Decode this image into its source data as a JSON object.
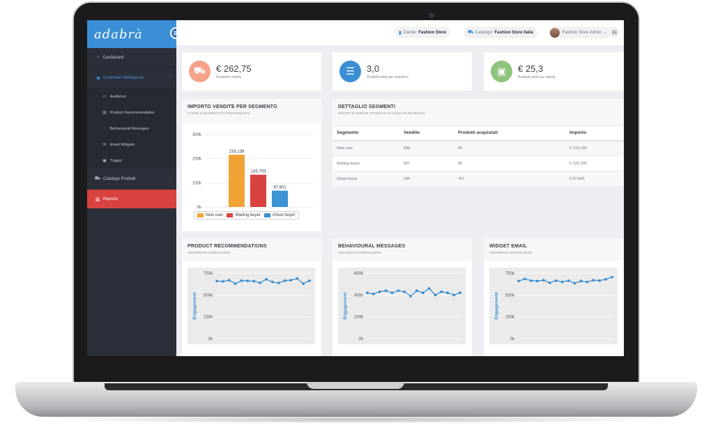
{
  "app": {
    "logo_text": "adabrà"
  },
  "colors": {
    "accent": "#3a8fd6",
    "orange": "#f2a335",
    "red": "#d8423f",
    "blue": "#3c93d6",
    "salmon": "#f6a28a",
    "green": "#8fc47d",
    "sidebar": "#2b2f39"
  },
  "sidebar": {
    "items": [
      {
        "label": "Dashboard",
        "icon": "dashboard-icon"
      },
      {
        "label": "Customer Intelligence",
        "icon": "megaphone-icon"
      },
      {
        "label": "Audience",
        "icon": "monitor-icon"
      },
      {
        "label": "Product Recommendation",
        "icon": "keyboard-icon"
      },
      {
        "label": "Behavioural Messages",
        "icon": "chat-icon"
      },
      {
        "label": "Email Widgets",
        "icon": "envelope-icon"
      },
      {
        "label": "Trigger",
        "icon": "inbox-icon"
      },
      {
        "label": "Catalogo Prodotti",
        "icon": "cart-icon"
      },
      {
        "label": "Reports",
        "icon": "bar-chart-icon"
      }
    ]
  },
  "topbar": {
    "cliente_label": "Cliente:",
    "cliente_value": "Fashion Store",
    "catalogo_label": "Catalogo:",
    "catalogo_value": "Fashion Store Italia",
    "user": "Fashion Store Admin"
  },
  "kpis": [
    {
      "value": "€ 262,75",
      "label": "Scontrino medio",
      "icon": "cart-icon",
      "color": "#f6a28a"
    },
    {
      "value": "3,0",
      "label": "Prodotti medi per scontrino",
      "icon": "list-icon",
      "color": "#3c8fd4"
    },
    {
      "value": "€ 25,3",
      "label": "Acquisti medi per utente",
      "icon": "money-icon",
      "color": "#8fc47d"
    }
  ],
  "importo": {
    "title": "IMPORTO VENDITE PER SEGMENTO",
    "subtitle": "(I PRIMI 5 SEGMENTI PIÙ PERFORMANTI)"
  },
  "dettaglio": {
    "title": "DETTAGLIO SEGMENTI",
    "subtitle": "IMPORTI E VENDITE OTTENUTE DA CIASCUN SEGMENTO",
    "headers": [
      "Segmento",
      "Vendite",
      "Prodotti acquistati",
      "Importo"
    ],
    "rows": [
      [
        "New user",
        "838",
        "2K",
        "€ 216,14K"
      ],
      [
        "Waiting buyer",
        "507",
        "2K",
        "€ 133,70K"
      ],
      [
        "Ghost buyer",
        "244",
        "757",
        "€ 67,60K"
      ]
    ]
  },
  "line_cards": [
    {
      "title": "PRODUCT RECOMMENDATIONS",
      "subtitle": "ANDAMENTO GIORNALIERO"
    },
    {
      "title": "BEHAVIOURAL MESSAGES",
      "subtitle": "ANDAMENTO GIORNALIERO"
    },
    {
      "title": "WIDGET EMAIL",
      "subtitle": "ANDAMENTO GIORNALIERO"
    }
  ],
  "chart_data": [
    {
      "type": "bar",
      "categories": [
        "New user",
        "Waiting buyer",
        "Ghost buyer"
      ],
      "values": [
        216138,
        133703,
        67601
      ],
      "data_labels": [
        "216,138",
        "133,703",
        "67,601"
      ],
      "colors": [
        "#f2a335",
        "#d8423f",
        "#3c93d6"
      ],
      "yticks": [
        "300k",
        "200k",
        "100k",
        "0k"
      ],
      "ylim": [
        0,
        300000
      ],
      "legend": "bottom"
    },
    {
      "type": "line",
      "ylabel": "Engagement",
      "yticks": [
        "750k",
        "500k",
        "250k",
        "0k"
      ],
      "ylim": [
        0,
        750000
      ],
      "series": [
        {
          "values": [
            660000,
            655000,
            670000,
            630000,
            665000,
            662000,
            658000,
            640000,
            680000,
            650000,
            638000,
            665000,
            670000,
            690000,
            630000,
            665000
          ]
        }
      ]
    },
    {
      "type": "line",
      "ylabel": "Engagement",
      "yticks": [
        "600k",
        "400k",
        "200k",
        "0k"
      ],
      "ylim": [
        0,
        600000
      ],
      "series": [
        {
          "values": [
            420000,
            410000,
            430000,
            440000,
            420000,
            440000,
            430000,
            390000,
            440000,
            420000,
            460000,
            400000,
            430000,
            420000,
            400000,
            420000
          ]
        }
      ]
    },
    {
      "type": "line",
      "ylabel": "Engagement",
      "yticks": [
        "750k",
        "500k",
        "250k",
        "0k"
      ],
      "ylim": [
        0,
        750000
      ],
      "series": [
        {
          "values": [
            660000,
            685000,
            665000,
            660000,
            670000,
            640000,
            665000,
            650000,
            665000,
            635000,
            660000,
            650000,
            670000,
            665000,
            680000,
            705000
          ]
        }
      ]
    }
  ]
}
